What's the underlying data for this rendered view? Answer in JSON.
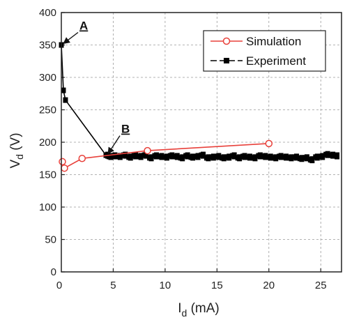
{
  "chart_data": {
    "type": "line",
    "xlabel": "I",
    "xlabel_sub": "d",
    "xlabel_unit": " (mA)",
    "ylabel": "V",
    "ylabel_sub": "d",
    "ylabel_unit": " (V)",
    "xlim": [
      0,
      27
    ],
    "ylim": [
      0,
      400
    ],
    "x_ticks": [
      5,
      10,
      15,
      20,
      25
    ],
    "y_ticks": [
      0,
      50,
      100,
      150,
      200,
      250,
      300,
      350,
      400
    ],
    "grid": true,
    "legend_position": "top-right",
    "series": [
      {
        "name": "Simulation",
        "color": "#e8403a",
        "marker": "open-circle",
        "x": [
          0.1,
          0.3,
          2.0,
          8.3,
          20.0
        ],
        "y": [
          170,
          160,
          175,
          187,
          198
        ]
      },
      {
        "name": "Experiment",
        "color": "#000000",
        "marker": "filled-square",
        "x": [
          0,
          0.2,
          0.4,
          4.3,
          4.6,
          5.0,
          5.5,
          6.0,
          6.5,
          7.0,
          7.5,
          8.0,
          8.5,
          9.0,
          9.5,
          10.0,
          10.5,
          11.0,
          11.5,
          12.0,
          12.5,
          13.0,
          13.5,
          14.0,
          14.5,
          15.0,
          15.5,
          16.0,
          16.5,
          17.0,
          17.5,
          18.0,
          18.5,
          19.0,
          19.5,
          20.0,
          20.5,
          21.0,
          21.5,
          22.0,
          22.5,
          23.0,
          23.5,
          24.0,
          24.5,
          25.0,
          25.5,
          26.0,
          26.4
        ],
        "y": [
          350,
          280,
          265,
          180,
          178,
          179,
          178,
          180,
          177,
          179,
          178,
          180,
          176,
          179,
          178,
          177,
          179,
          178,
          176,
          179,
          177,
          178,
          180,
          176,
          177,
          178,
          176,
          177,
          179,
          176,
          178,
          177,
          176,
          179,
          178,
          177,
          176,
          178,
          177,
          176,
          177,
          175,
          176,
          173,
          177,
          178,
          181,
          180,
          179
        ]
      }
    ],
    "annotations": [
      {
        "text": "A",
        "x": 0,
        "y": 350
      },
      {
        "text": "B",
        "x": 4.3,
        "y": 180
      }
    ]
  },
  "legend": {
    "items": [
      {
        "label": "Simulation",
        "color": "#e8403a",
        "marker": "open-circle"
      },
      {
        "label": "Experiment",
        "color": "#000000",
        "marker": "filled-square"
      }
    ]
  }
}
